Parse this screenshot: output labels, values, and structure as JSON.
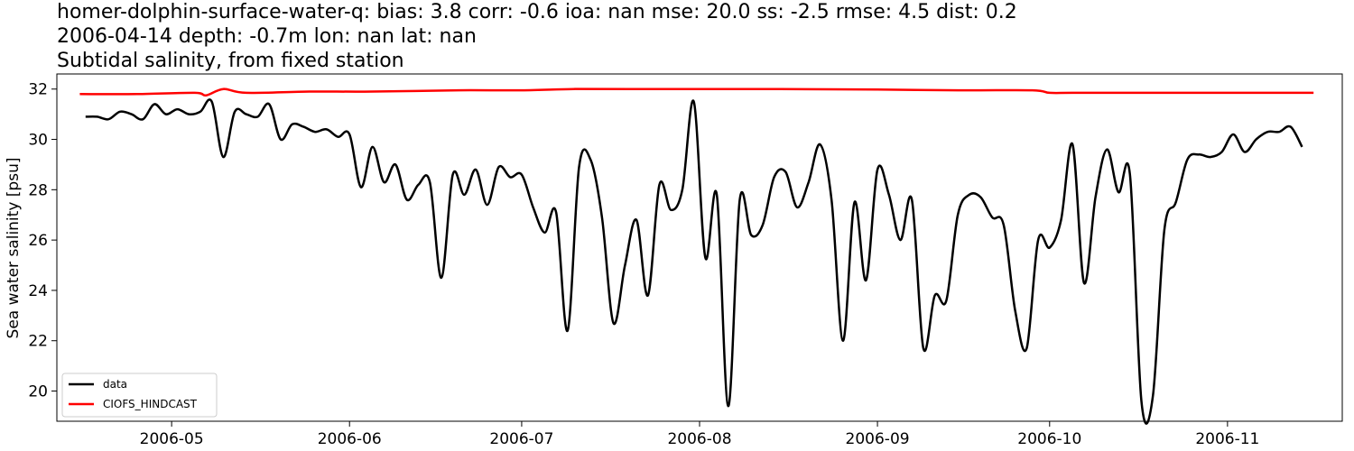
{
  "chart_data": {
    "type": "line",
    "title_lines": [
      "homer-dolphin-surface-water-q: bias: 3.8  corr: -0.6  ioa: nan  mse: 20.0  ss: -2.5  rmse: 4.5  dist: 0.2",
      "2006-04-14 depth: -0.7m lon: nan lat: nan",
      "Subtidal salinity, from fixed station"
    ],
    "xlabel": "",
    "ylabel": "Sea water salinity [psu]",
    "x_range": [
      "2006-04-11",
      "2006-11-21"
    ],
    "ylim": [
      18.8,
      32.6
    ],
    "y_ticks": [
      20,
      22,
      24,
      26,
      28,
      30,
      32
    ],
    "x_ticks": [
      "2006-05-01",
      "2006-06-01",
      "2006-07-01",
      "2006-08-01",
      "2006-09-01",
      "2006-10-01",
      "2006-11-01"
    ],
    "x_tick_labels": [
      "2006-05",
      "2006-06",
      "2006-07",
      "2006-08",
      "2006-09",
      "2006-10",
      "2006-11"
    ],
    "grid": false,
    "legend_position": "lower-left",
    "series": [
      {
        "name": "data",
        "color": "#000000",
        "x": [
          "2006-04-16",
          "2006-04-18",
          "2006-04-20",
          "2006-04-22",
          "2006-04-24",
          "2006-04-26",
          "2006-04-28",
          "2006-04-30",
          "2006-05-02",
          "2006-05-04",
          "2006-05-06",
          "2006-05-08",
          "2006-05-10",
          "2006-05-12",
          "2006-05-14",
          "2006-05-16",
          "2006-05-18",
          "2006-05-20",
          "2006-05-22",
          "2006-05-24",
          "2006-05-26",
          "2006-05-28",
          "2006-05-30",
          "2006-06-01",
          "2006-06-03",
          "2006-06-05",
          "2006-06-07",
          "2006-06-09",
          "2006-06-11",
          "2006-06-13",
          "2006-06-15",
          "2006-06-17",
          "2006-06-19",
          "2006-06-21",
          "2006-06-23",
          "2006-06-25",
          "2006-06-27",
          "2006-06-29",
          "2006-07-01",
          "2006-07-03",
          "2006-07-05",
          "2006-07-07",
          "2006-07-09",
          "2006-07-11",
          "2006-07-13",
          "2006-07-15",
          "2006-07-17",
          "2006-07-19",
          "2006-07-21",
          "2006-07-23",
          "2006-07-25",
          "2006-07-27",
          "2006-07-29",
          "2006-07-31",
          "2006-08-02",
          "2006-08-04",
          "2006-08-06",
          "2006-08-08",
          "2006-08-10",
          "2006-08-12",
          "2006-08-14",
          "2006-08-16",
          "2006-08-18",
          "2006-08-20",
          "2006-08-22",
          "2006-08-24",
          "2006-08-26",
          "2006-08-28",
          "2006-08-30",
          "2006-09-01",
          "2006-09-03",
          "2006-09-05",
          "2006-09-07",
          "2006-09-09",
          "2006-09-11",
          "2006-09-13",
          "2006-09-15",
          "2006-09-17",
          "2006-09-19",
          "2006-09-21",
          "2006-09-23",
          "2006-09-25",
          "2006-09-27",
          "2006-09-29",
          "2006-10-01",
          "2006-10-03",
          "2006-10-05",
          "2006-10-07",
          "2006-10-09",
          "2006-10-11",
          "2006-10-13",
          "2006-10-15",
          "2006-10-17",
          "2006-10-19",
          "2006-10-21",
          "2006-10-23",
          "2006-10-25",
          "2006-10-27",
          "2006-10-29",
          "2006-10-31",
          "2006-11-02",
          "2006-11-04",
          "2006-11-06",
          "2006-11-08",
          "2006-11-10",
          "2006-11-12",
          "2006-11-14"
        ],
        "y": [
          30.9,
          30.9,
          30.8,
          31.1,
          31.0,
          30.8,
          31.4,
          31.0,
          31.2,
          31.0,
          31.1,
          31.5,
          29.3,
          31.1,
          31.0,
          30.9,
          31.4,
          30.0,
          30.6,
          30.5,
          30.3,
          30.4,
          30.1,
          30.2,
          28.1,
          29.7,
          28.3,
          29.0,
          27.6,
          28.2,
          28.3,
          24.5,
          28.6,
          27.8,
          28.8,
          27.4,
          28.9,
          28.5,
          28.6,
          27.3,
          26.3,
          27.1,
          22.4,
          28.9,
          29.2,
          26.9,
          22.7,
          25.0,
          26.8,
          23.8,
          28.2,
          27.2,
          28.0,
          31.5,
          25.3,
          27.8,
          19.4,
          27.6,
          26.2,
          26.6,
          28.5,
          28.7,
          27.3,
          28.3,
          29.8,
          27.6,
          22.0,
          27.5,
          24.4,
          28.8,
          27.8,
          26.0,
          27.6,
          21.7,
          23.8,
          23.6,
          27.0,
          27.8,
          27.7,
          26.9,
          26.6,
          23.2,
          21.7,
          26.0,
          25.7,
          26.8,
          29.8,
          24.3,
          27.7,
          29.6,
          27.9,
          28.6,
          19.6,
          19.8,
          26.4,
          27.5,
          29.2,
          29.4,
          29.3,
          29.5,
          30.2,
          29.5,
          30.0,
          30.3,
          30.3,
          30.5,
          29.7
        ]
      },
      {
        "name": "CIOFS_HINDCAST",
        "color": "#ff0000",
        "x": [
          "2006-04-15",
          "2006-04-25",
          "2006-05-05",
          "2006-05-07",
          "2006-05-10",
          "2006-05-14",
          "2006-05-25",
          "2006-06-05",
          "2006-06-20",
          "2006-07-01",
          "2006-07-10",
          "2006-07-20",
          "2006-08-01",
          "2006-08-15",
          "2006-09-01",
          "2006-09-15",
          "2006-09-28",
          "2006-10-01",
          "2006-10-05",
          "2006-10-15",
          "2006-11-01",
          "2006-11-16"
        ],
        "y": [
          31.8,
          31.8,
          31.85,
          31.75,
          32.0,
          31.85,
          31.9,
          31.9,
          31.95,
          31.95,
          32.0,
          32.0,
          32.0,
          32.0,
          31.98,
          31.95,
          31.95,
          31.85,
          31.85,
          31.85,
          31.85,
          31.85
        ]
      }
    ]
  }
}
